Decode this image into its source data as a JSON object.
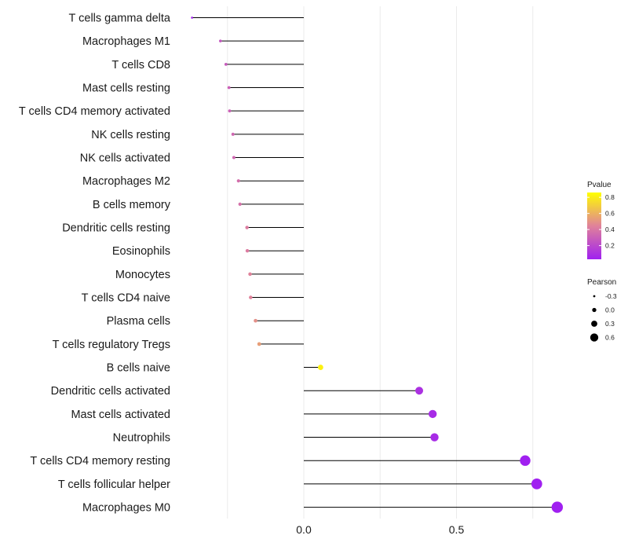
{
  "chart_data": {
    "type": "lollipop",
    "categories": [
      "T cells gamma delta",
      "Macrophages M1",
      "T cells CD8",
      "Mast cells resting",
      "T cells CD4 memory activated",
      "NK cells resting",
      "NK cells activated",
      "Macrophages M2",
      "B cells memory",
      "Dendritic cells resting",
      "Eosinophils",
      "Monocytes",
      "T cells CD4 naive",
      "Plasma cells",
      "T cells regulatory  Tregs ",
      "B cells naive",
      "Dendritic cells activated",
      "Mast cells activated",
      "Neutrophils",
      "T cells CD4 memory resting",
      "T cells follicular helper",
      "Macrophages M0"
    ],
    "pearson": [
      -0.366,
      -0.273,
      -0.255,
      -0.245,
      -0.243,
      -0.232,
      -0.229,
      -0.214,
      -0.209,
      -0.186,
      -0.185,
      -0.176,
      -0.174,
      -0.158,
      -0.146,
      0.055,
      0.378,
      0.422,
      0.428,
      0.725,
      0.763,
      0.83
    ],
    "pvalue": [
      0.02,
      0.25,
      0.27,
      0.3,
      0.3,
      0.33,
      0.33,
      0.36,
      0.37,
      0.42,
      0.42,
      0.45,
      0.45,
      0.5,
      0.55,
      0.85,
      0.08,
      0.05,
      0.05,
      0.0005,
      0.0003,
      0.0001
    ],
    "x_ticks": [
      0.0,
      0.5
    ],
    "x_tick_labels": [
      "0.0",
      "0.5"
    ],
    "x_gridlines": [
      -0.25,
      0.25,
      0.75
    ],
    "xlim": [
      -0.42,
      0.86
    ],
    "xlabel": "",
    "ylabel": "",
    "color_scale": {
      "title": "Pvalue",
      "ticks": [
        0.8,
        0.6,
        0.4,
        0.2
      ],
      "tick_labels": [
        "0.8",
        "0.6",
        "0.4",
        "0.2"
      ],
      "low_color": "#a020f0",
      "mid_color": "#e0829a",
      "high_color": "#ffff00"
    },
    "size_legend": {
      "title": "Pearson",
      "values": [
        -0.3,
        0.0,
        0.3,
        0.6
      ],
      "labels": [
        "-0.3",
        "0.0",
        "0.3",
        "0.6"
      ]
    },
    "stem_color": "#000000",
    "grid_color": "#ebebeb"
  }
}
